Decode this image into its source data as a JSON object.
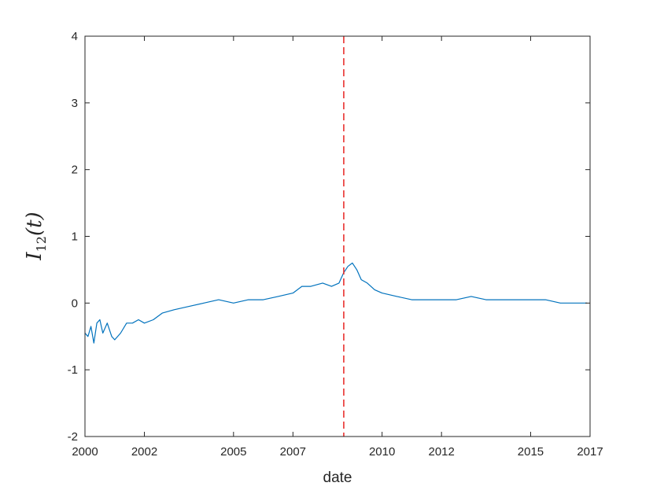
{
  "chart_data": {
    "type": "line",
    "xlabel": "date",
    "ylabel": {
      "main": "I",
      "subscript": "12",
      "suffix": "(t)"
    },
    "xlim": [
      2000.0,
      2017.0
    ],
    "ylim": [
      -2,
      4
    ],
    "xticks": [
      2000,
      2002,
      2005,
      2007,
      2010,
      2012,
      2015,
      2017
    ],
    "xtick_labels": [
      "2000",
      "2002",
      "2005",
      "2007",
      "2010",
      "2012",
      "2015",
      "2017"
    ],
    "yticks": [
      -2,
      -1,
      0,
      1,
      2,
      3,
      4
    ],
    "ytick_labels": [
      "-2",
      "-1",
      "0",
      "1",
      "2",
      "3",
      "4"
    ],
    "grid": false,
    "series": [
      {
        "color": "#0072BD",
        "x": [
          2000.0,
          2000.1,
          2000.2,
          2000.3,
          2000.4,
          2000.5,
          2000.6,
          2000.75,
          2000.9,
          2001.0,
          2001.2,
          2001.4,
          2001.6,
          2001.8,
          2002.0,
          2002.3,
          2002.6,
          2003.0,
          2003.5,
          2004.0,
          2004.5,
          2005.0,
          2005.5,
          2006.0,
          2006.5,
          2007.0,
          2007.3,
          2007.6,
          2008.0,
          2008.3,
          2008.55,
          2008.7,
          2008.85,
          2009.0,
          2009.15,
          2009.3,
          2009.5,
          2009.75,
          2010.0,
          2010.5,
          2011.0,
          2011.5,
          2012.0,
          2012.5,
          2013.0,
          2013.5,
          2014.0,
          2014.5,
          2015.0,
          2015.5,
          2016.0,
          2016.5,
          2016.9
        ],
        "y": [
          -0.45,
          -0.5,
          -0.35,
          -0.6,
          -0.3,
          -0.25,
          -0.45,
          -0.3,
          -0.5,
          -0.55,
          -0.45,
          -0.3,
          -0.3,
          -0.25,
          -0.3,
          -0.25,
          -0.15,
          -0.1,
          -0.05,
          0.0,
          0.05,
          0.0,
          0.05,
          0.05,
          0.1,
          0.15,
          0.25,
          0.25,
          0.3,
          0.25,
          0.3,
          0.45,
          0.55,
          0.6,
          0.5,
          0.35,
          0.3,
          0.2,
          0.15,
          0.1,
          0.05,
          0.05,
          0.05,
          0.05,
          0.1,
          0.05,
          0.05,
          0.05,
          0.05,
          0.05,
          0.0,
          0.0,
          0.0
        ]
      }
    ],
    "events": [
      {
        "x": 2008.71,
        "color": "#e8312f",
        "style": "dashed"
      }
    ]
  }
}
